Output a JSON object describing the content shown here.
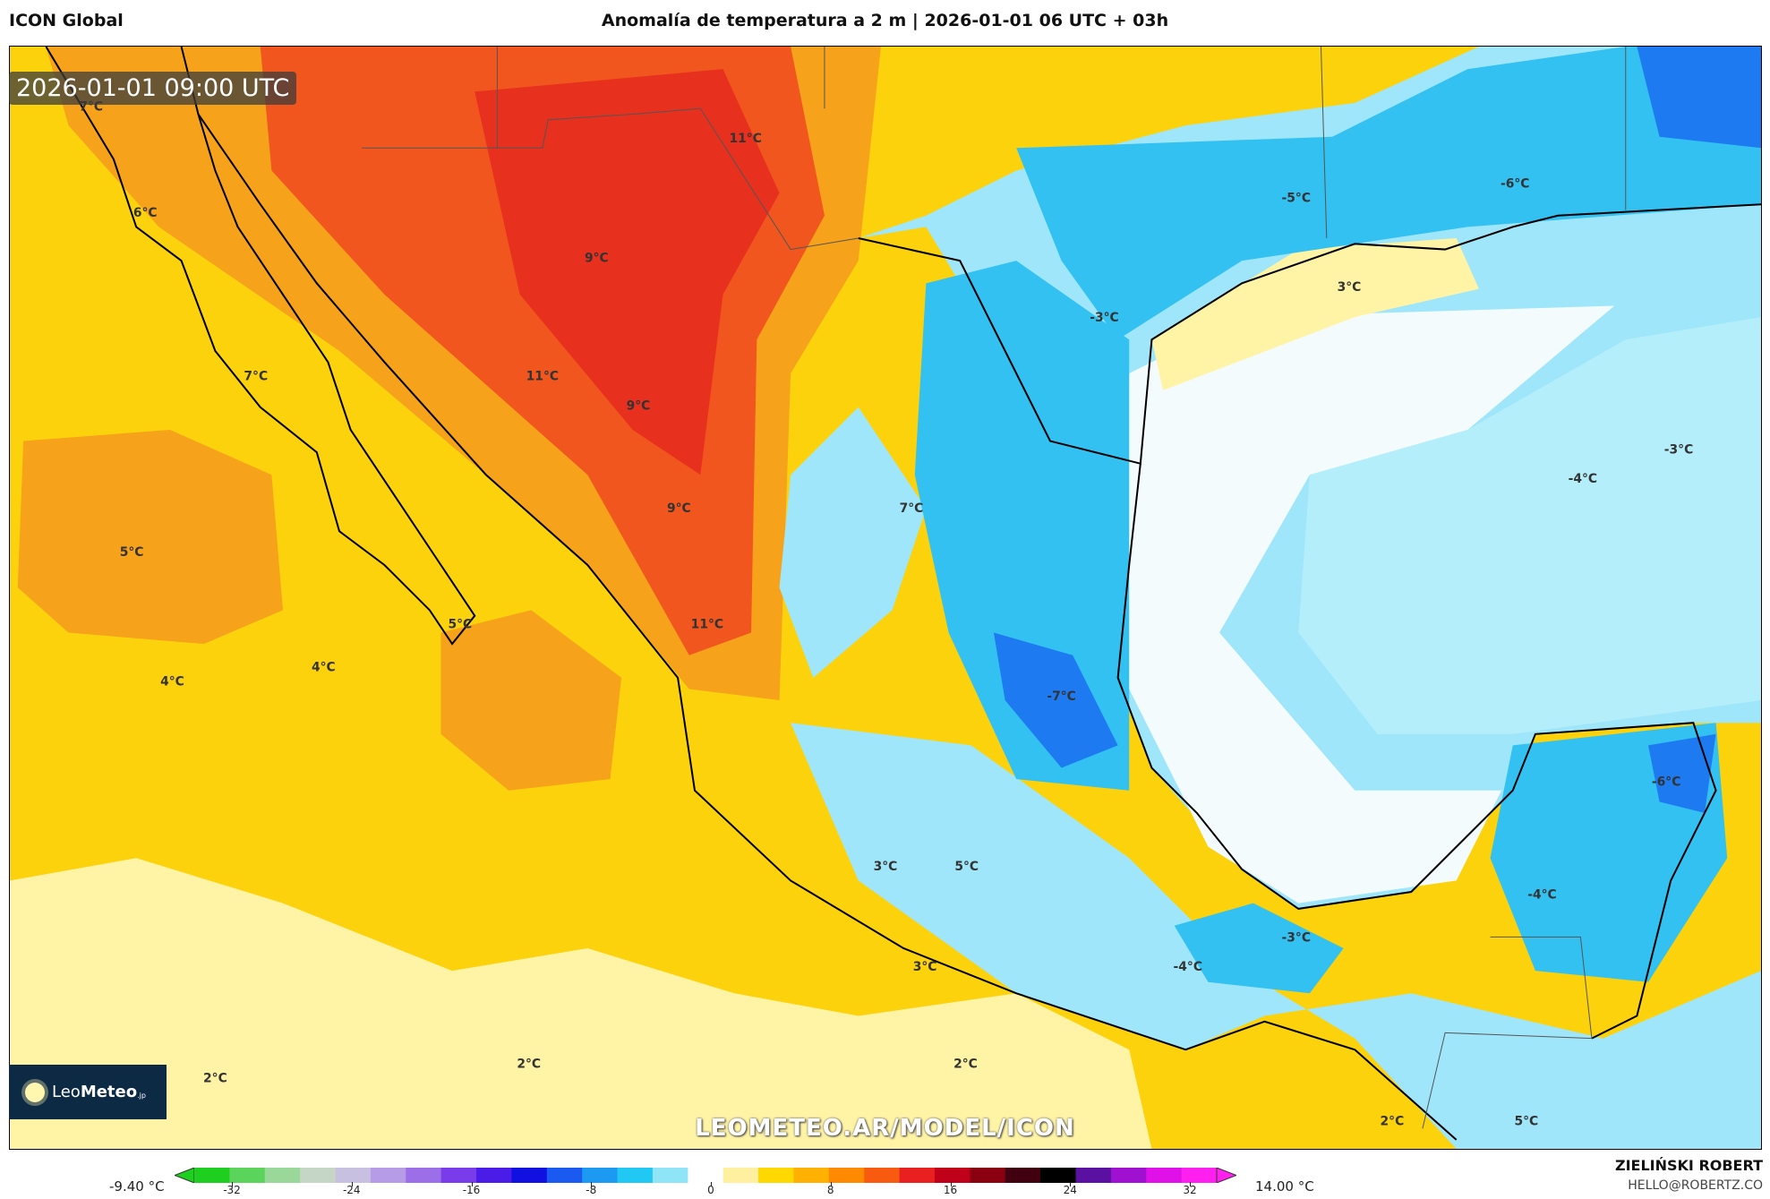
{
  "header": {
    "model": "ICON Global",
    "title": "Anomalía de temperatura a 2 m | 2026-01-01 06 UTC + 03h"
  },
  "map": {
    "valid_time": "2026-01-01 09:00 UTC",
    "watermark": "LEOMETEO.AR/MODEL/ICON",
    "logo": {
      "text_light": "Leo",
      "text_bold": "Meteo",
      "suffix": ".jp"
    },
    "labels": [
      "7°C",
      "6°C",
      "11°C",
      "9°C",
      "7°C",
      "11°C",
      "9°C",
      "9°C",
      "5°C",
      "5°C",
      "11°C",
      "4°C",
      "4°C",
      "7°C",
      "-5°C",
      "-6°C",
      "3°C",
      "-3°C",
      "-3°C",
      "-4°C",
      "-7°C",
      "-6°C",
      "3°C",
      "5°C",
      "-4°C",
      "-3°C",
      "-4°C",
      "3°C",
      "2°C",
      "2°C",
      "2°C",
      "2°C",
      "5°C"
    ],
    "colors": {
      "warm_ocean": "#fcd20c",
      "pale": "#fff3a6",
      "orange": "#f7a21b",
      "red_orange": "#f0561e",
      "red": "#e8301f",
      "light_blue": "#9fe6fa",
      "blue": "#33c1f2",
      "dark_blue": "#1d7af0",
      "white": "#f4fbfd"
    }
  },
  "colorbar": {
    "min_label": "-9.40 °C",
    "max_label": "14.00 °C",
    "ticks": [
      "-32",
      "-24",
      "-16",
      "-8",
      "0",
      "8",
      "16",
      "24",
      "32"
    ],
    "colors": [
      "#1fcf1f",
      "#5ad45a",
      "#9ad89a",
      "#c6d6c6",
      "#c8c0e0",
      "#b69be6",
      "#9c6ee8",
      "#7a3cea",
      "#4b1ce8",
      "#1010e0",
      "#1a5af0",
      "#1c9af2",
      "#22c8f4",
      "#8fe4f8",
      "#ffffff",
      "#fff0a0",
      "#ffd800",
      "#ffb000",
      "#ff8a00",
      "#f85a10",
      "#e82020",
      "#c00018",
      "#8a0010",
      "#400010",
      "#000000",
      "#5a10a0",
      "#a010d0",
      "#e010e8",
      "#ff20f0"
    ]
  },
  "footer": {
    "author": "ZIELIŃSKI ROBERT",
    "email": "HELLO@ROBERTZ.CO"
  }
}
